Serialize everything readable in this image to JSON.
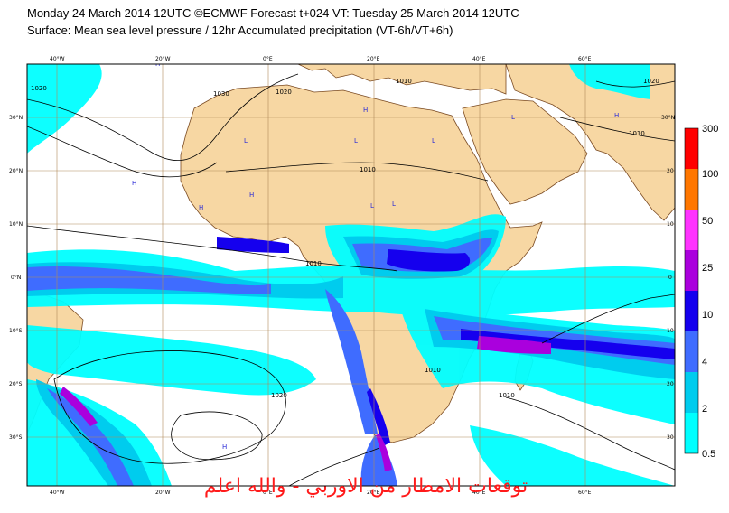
{
  "header": {
    "line1": "Monday 24 March 2014 12UTC ©ECMWF Forecast t+024 VT: Tuesday 25 March 2014 12UTC",
    "line2": "Surface: Mean sea level pressure / 12hr Accumulated precipitation (VT-6h/VT+6h)"
  },
  "map": {
    "lon_labels_top": [
      "40°W",
      "20°W",
      "0°E",
      "20°E",
      "40°E",
      "60°E"
    ],
    "lon_labels_bottom": [
      "40°W",
      "20°W",
      "0°E",
      "20°E",
      "40°E",
      "60°E"
    ],
    "lat_labels_left": [
      "30°N",
      "20°N",
      "10°N",
      "0°N",
      "10°S",
      "20°S",
      "30°S"
    ],
    "lat_labels_right": [
      "30°N",
      "20",
      "10",
      "0",
      "10",
      "20",
      "30"
    ],
    "isobar_labels": [
      "1020",
      "1030",
      "1020",
      "1010",
      "1010",
      "1010",
      "1010",
      "1020",
      "1010",
      "1020",
      "1010"
    ],
    "pressure_centers": [
      "H",
      "H",
      "H",
      "L",
      "L",
      "L",
      "H",
      "L",
      "L",
      "H",
      "H",
      "L",
      "H"
    ],
    "colors": {
      "ocean": "#ffffff",
      "land": "#f7d7a3",
      "coast": "#7a4a22",
      "grid": "#b08a5a",
      "isobar": "#000000"
    }
  },
  "colorbar": {
    "levels": [
      "300",
      "100",
      "50",
      "25",
      "10",
      "4",
      "2",
      "0.5"
    ],
    "colors": [
      "#ff0000",
      "#ff7700",
      "#ff33ff",
      "#aa00dd",
      "#1500ee",
      "#3f6cff",
      "#00ccee",
      "#00ffff"
    ]
  },
  "watermark": "توقعات الامطار من الاوربي - والله اعلم"
}
